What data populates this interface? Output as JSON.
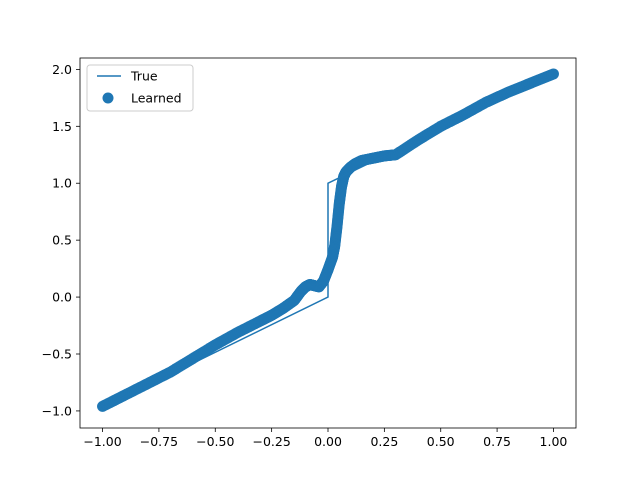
{
  "chart_data": {
    "type": "line",
    "title": "",
    "xlabel": "",
    "ylabel": "",
    "xlim": [
      -1.1,
      1.1
    ],
    "ylim": [
      -1.15,
      2.1
    ],
    "xticks": [
      -1.0,
      -0.75,
      -0.5,
      -0.25,
      0.0,
      0.25,
      0.5,
      0.75,
      1.0
    ],
    "xtick_labels": [
      "−1.00",
      "−0.75",
      "−0.50",
      "−0.25",
      "0.00",
      "0.25",
      "0.50",
      "0.75",
      "1.00"
    ],
    "yticks": [
      -1.0,
      -0.5,
      0.0,
      0.5,
      1.0,
      1.5,
      2.0
    ],
    "ytick_labels": [
      "−1.0",
      "−0.5",
      "0.0",
      "0.5",
      "1.0",
      "1.5",
      "2.0"
    ],
    "grid": false,
    "legend": {
      "placement": "top-left"
    },
    "color": "#1f77b4",
    "series": [
      {
        "name": "True",
        "kind": "line",
        "x": [
          -1.0,
          0.0,
          0.0,
          1.0
        ],
        "y": [
          -0.97,
          0.0,
          1.0,
          1.96
        ]
      },
      {
        "name": "Learned",
        "kind": "scatter",
        "x": [
          -1.0,
          -0.9,
          -0.8,
          -0.7,
          -0.6,
          -0.5,
          -0.4,
          -0.3,
          -0.25,
          -0.2,
          -0.15,
          -0.12,
          -0.1,
          -0.08,
          -0.06,
          -0.04,
          -0.02,
          0.0,
          0.02,
          0.03,
          0.04,
          0.05,
          0.06,
          0.07,
          0.08,
          0.1,
          0.12,
          0.15,
          0.2,
          0.25,
          0.3,
          0.4,
          0.5,
          0.6,
          0.7,
          0.8,
          0.9,
          1.0
        ],
        "y": [
          -0.96,
          -0.86,
          -0.76,
          -0.66,
          -0.54,
          -0.42,
          -0.31,
          -0.21,
          -0.16,
          -0.1,
          -0.03,
          0.05,
          0.09,
          0.11,
          0.1,
          0.09,
          0.14,
          0.24,
          0.35,
          0.45,
          0.62,
          0.82,
          0.97,
          1.06,
          1.1,
          1.14,
          1.17,
          1.2,
          1.22,
          1.24,
          1.25,
          1.38,
          1.5,
          1.6,
          1.71,
          1.8,
          1.88,
          1.96
        ]
      }
    ]
  }
}
